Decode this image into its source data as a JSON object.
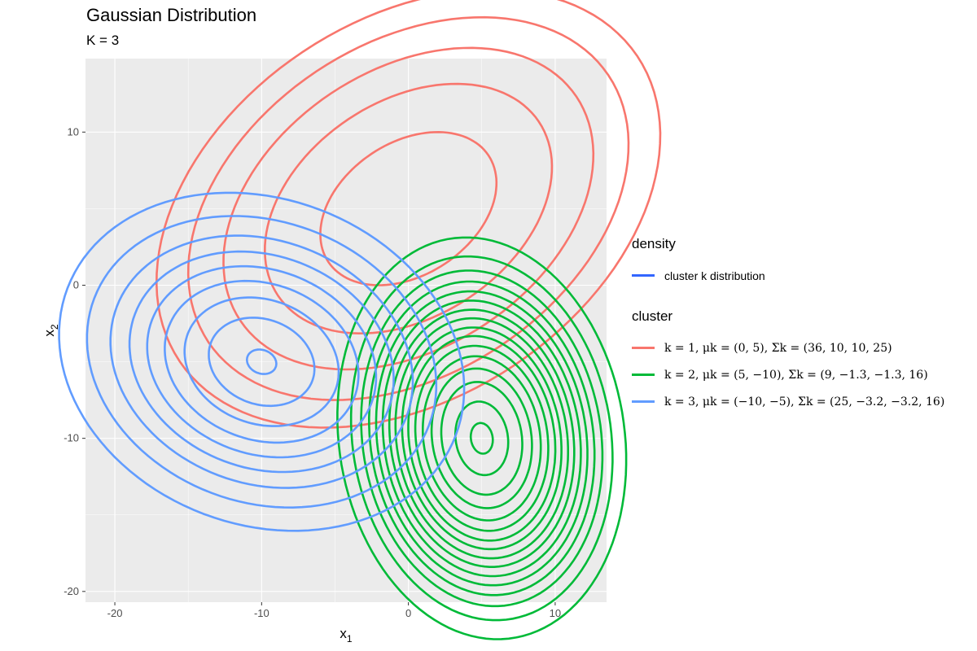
{
  "chart_data": {
    "type": "contour",
    "title": "Gaussian Distribution",
    "subtitle": "K = 3",
    "xlabel": "x",
    "xlabel_sub": "1",
    "ylabel": "x",
    "ylabel_sub": "2",
    "xlim": [
      -22,
      13.5
    ],
    "ylim": [
      -20.7,
      14.8
    ],
    "xticks": [
      -20,
      -10,
      0,
      10
    ],
    "yticks": [
      -20,
      -10,
      0,
      10
    ],
    "xtick_labels": [
      "-20",
      "-10",
      "0",
      "10"
    ],
    "ytick_labels": [
      "-20",
      "-10",
      "0",
      "10"
    ],
    "grid": true,
    "series": [
      {
        "name": "k = 1, μk = (0, 5), Σk = (36, 10, 10, 25)",
        "color": "#F8766D",
        "mean": [
          0,
          5
        ],
        "cov": [
          [
            36,
            10
          ],
          [
            10,
            25
          ]
        ],
        "mahalanobis_levels": [
          1.0,
          1.63,
          2.1,
          2.5,
          2.86
        ]
      },
      {
        "name": "k = 2, μk = (5, −10), Σk = (9, −1.3, −1.3, 16)",
        "color": "#00BA38",
        "mean": [
          5,
          -10
        ],
        "cov": [
          [
            9,
            -1.3
          ],
          [
            -1.3,
            16
          ]
        ],
        "mahalanobis_levels": [
          0.25,
          0.6,
          0.92,
          1.14,
          1.34,
          1.51,
          1.67,
          1.81,
          1.96,
          2.1,
          2.25,
          2.4,
          2.56,
          2.74,
          2.97,
          3.28
        ]
      },
      {
        "name": "k = 3, μk = (−10, −5), Σk = (25, −3.2, −3.2, 16)",
        "color": "#619CFF",
        "mean": [
          -10,
          -5
        ],
        "cov": [
          [
            25,
            -3.2
          ],
          [
            -3.2,
            16
          ]
        ],
        "mahalanobis_levels": [
          0.2,
          0.72,
          1.05,
          1.32,
          1.56,
          1.8,
          2.06,
          2.38,
          2.76
        ]
      }
    ]
  },
  "legend": {
    "density_title": "density",
    "density_label": "cluster k distribution",
    "density_color": "#3366FF",
    "cluster_title": "cluster"
  }
}
